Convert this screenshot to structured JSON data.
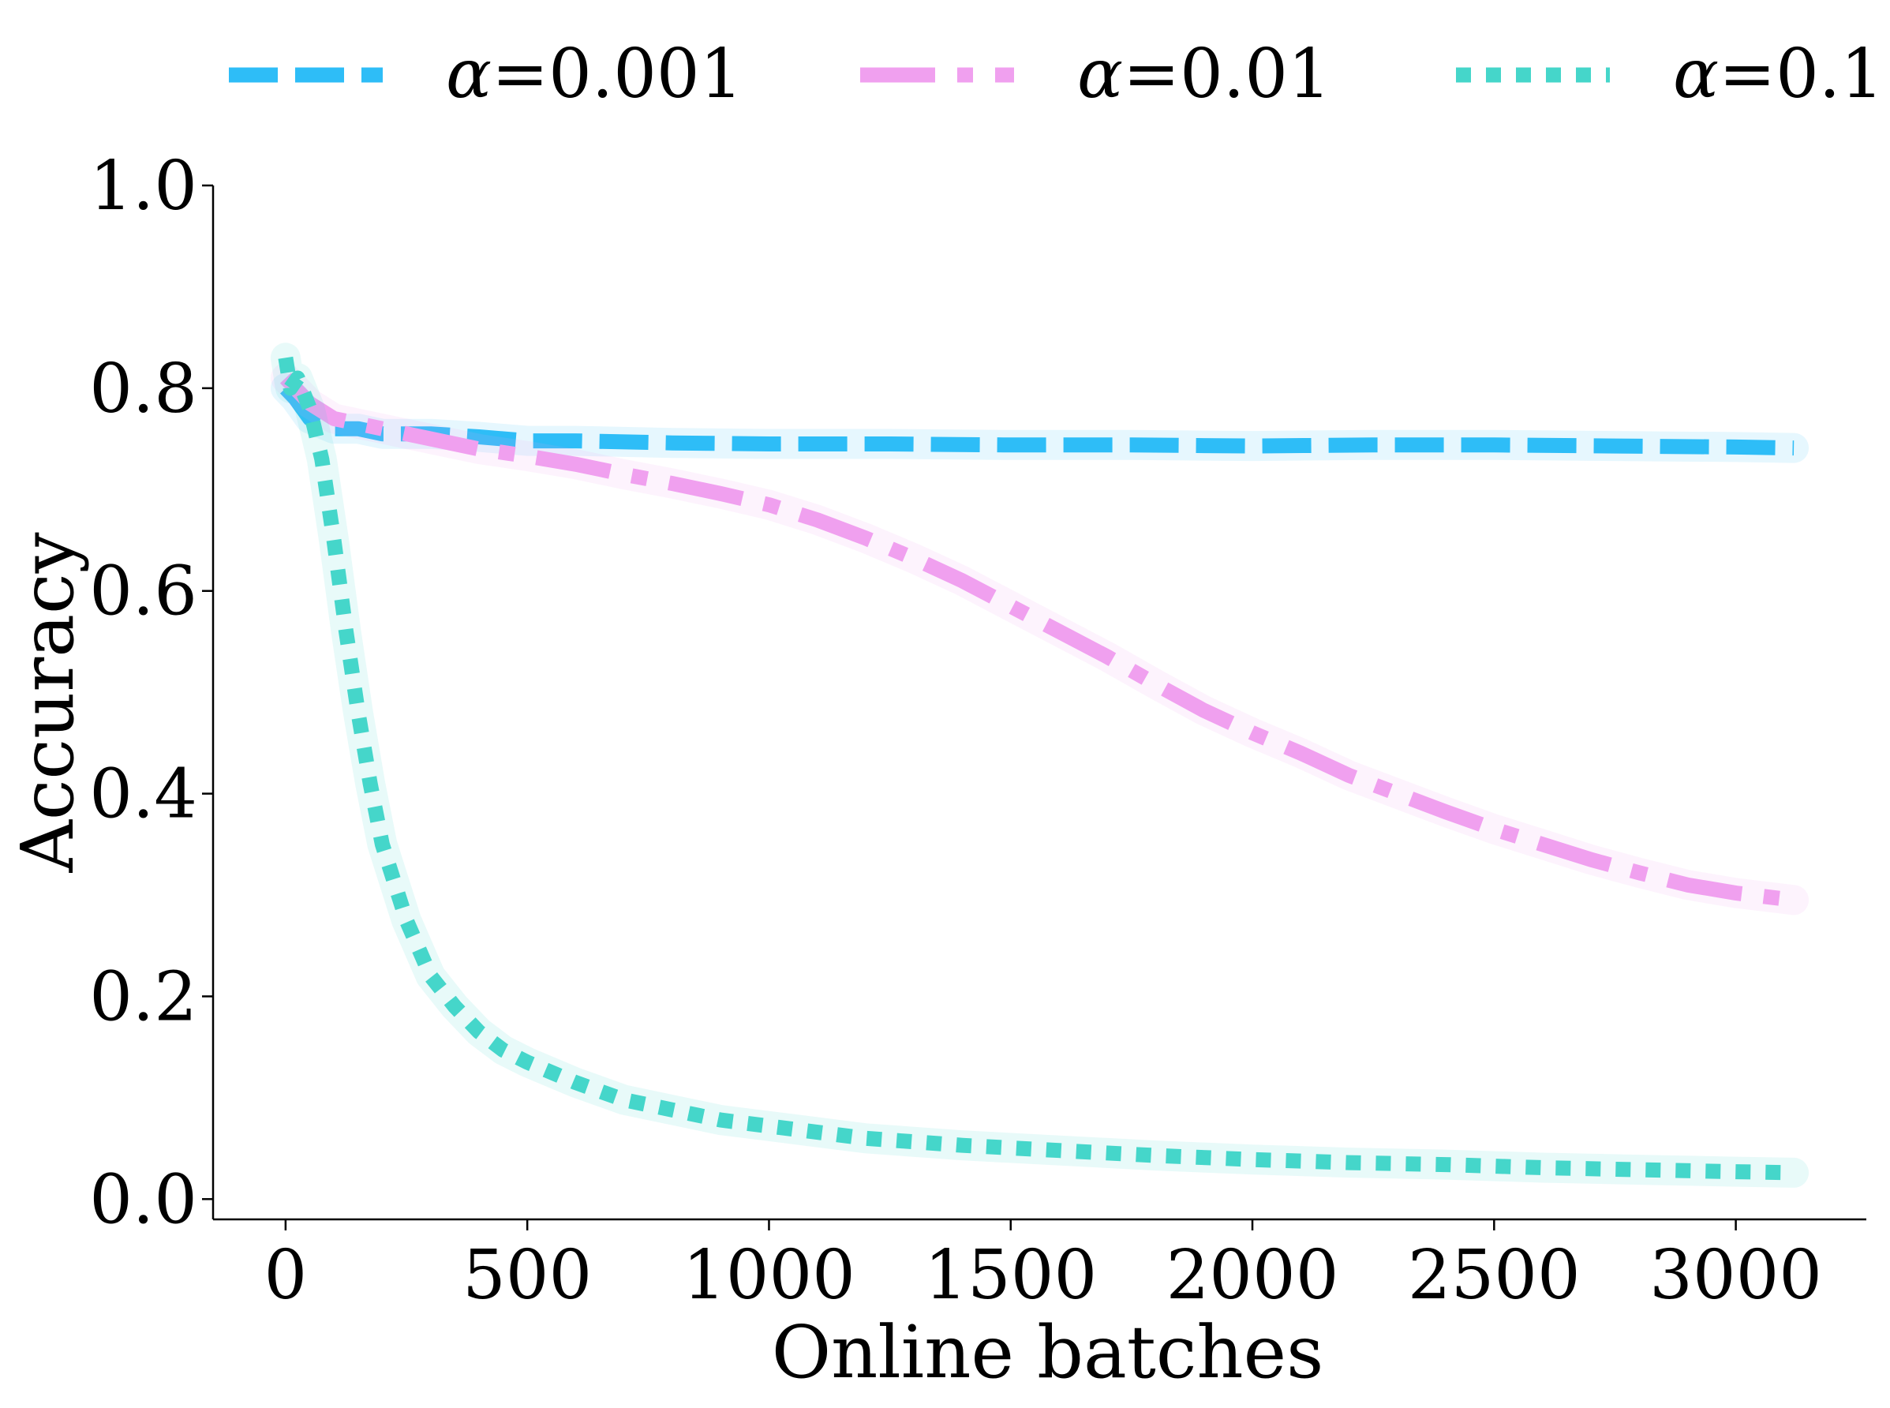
{
  "chart_data": {
    "type": "line",
    "title": "",
    "xlabel": "Online batches",
    "ylabel": "Accuracy",
    "xlim": [
      -150,
      3270
    ],
    "ylim": [
      -0.02,
      1.0
    ],
    "xticks": [
      0,
      500,
      1000,
      1500,
      2000,
      2500,
      3000
    ],
    "xtick_labels": [
      "0",
      "500",
      "1000",
      "1500",
      "2000",
      "2500",
      "3000"
    ],
    "yticks": [
      0.0,
      0.2,
      0.4,
      0.6,
      0.8,
      1.0
    ],
    "ytick_labels": [
      "0.0",
      "0.2",
      "0.4",
      "0.6",
      "0.8",
      "1.0"
    ],
    "grid": false,
    "legend_position": "top",
    "legend_symbol": "α",
    "series": [
      {
        "name": "=0.001",
        "color": "#2ebdf7",
        "style": "dashed",
        "x": [
          0,
          20,
          50,
          100,
          150,
          200,
          300,
          400,
          500,
          600,
          800,
          1000,
          1250,
          1500,
          1750,
          2000,
          2250,
          2500,
          2750,
          3000,
          3120
        ],
        "y": [
          0.8,
          0.79,
          0.77,
          0.76,
          0.76,
          0.755,
          0.755,
          0.752,
          0.748,
          0.748,
          0.746,
          0.745,
          0.745,
          0.744,
          0.744,
          0.743,
          0.744,
          0.744,
          0.743,
          0.742,
          0.741
        ]
      },
      {
        "name": "=0.01",
        "color": "#f0a0ef",
        "style": "dashdot",
        "x": [
          0,
          20,
          50,
          100,
          200,
          300,
          400,
          500,
          600,
          700,
          800,
          900,
          1000,
          1100,
          1200,
          1300,
          1400,
          1500,
          1600,
          1700,
          1800,
          1900,
          2000,
          2100,
          2200,
          2300,
          2400,
          2500,
          2600,
          2700,
          2800,
          2900,
          3000,
          3120
        ],
        "y": [
          0.81,
          0.8,
          0.785,
          0.77,
          0.76,
          0.75,
          0.74,
          0.733,
          0.725,
          0.715,
          0.706,
          0.696,
          0.685,
          0.67,
          0.652,
          0.632,
          0.61,
          0.585,
          0.56,
          0.535,
          0.508,
          0.482,
          0.46,
          0.44,
          0.418,
          0.4,
          0.382,
          0.365,
          0.35,
          0.335,
          0.322,
          0.31,
          0.302,
          0.295
        ]
      },
      {
        "name": "=0.1",
        "color": "#45d6ca",
        "style": "dotted",
        "x": [
          0,
          10,
          25,
          50,
          75,
          100,
          125,
          150,
          175,
          200,
          250,
          300,
          350,
          400,
          450,
          500,
          600,
          700,
          800,
          900,
          1000,
          1200,
          1400,
          1600,
          1800,
          2000,
          2200,
          2400,
          2600,
          2800,
          3000,
          3120
        ],
        "y": [
          0.83,
          0.8,
          0.81,
          0.78,
          0.73,
          0.65,
          0.56,
          0.48,
          0.41,
          0.35,
          0.275,
          0.22,
          0.19,
          0.165,
          0.147,
          0.135,
          0.115,
          0.098,
          0.088,
          0.078,
          0.072,
          0.06,
          0.053,
          0.048,
          0.043,
          0.039,
          0.036,
          0.034,
          0.031,
          0.029,
          0.027,
          0.026
        ]
      }
    ]
  }
}
